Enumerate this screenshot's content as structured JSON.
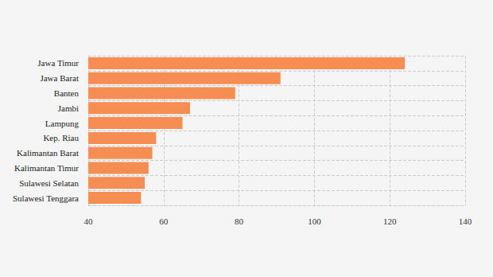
{
  "chart_data": {
    "type": "bar",
    "orientation": "horizontal",
    "categories": [
      "Jawa Timur",
      "Jawa Barat",
      "Banten",
      "Jambi",
      "Lampung",
      "Kep. Riau",
      "Kalimantan Barat",
      "Kalimantan Timur",
      "Sulawesi Selatan",
      "Sulawesi Tenggara"
    ],
    "values": [
      124,
      91,
      79,
      67,
      65,
      58,
      57,
      56,
      55,
      54
    ],
    "color": "#f68d52",
    "xlim": [
      40,
      140
    ],
    "xticks": [
      40,
      60,
      80,
      100,
      120,
      140
    ],
    "grid": true
  }
}
